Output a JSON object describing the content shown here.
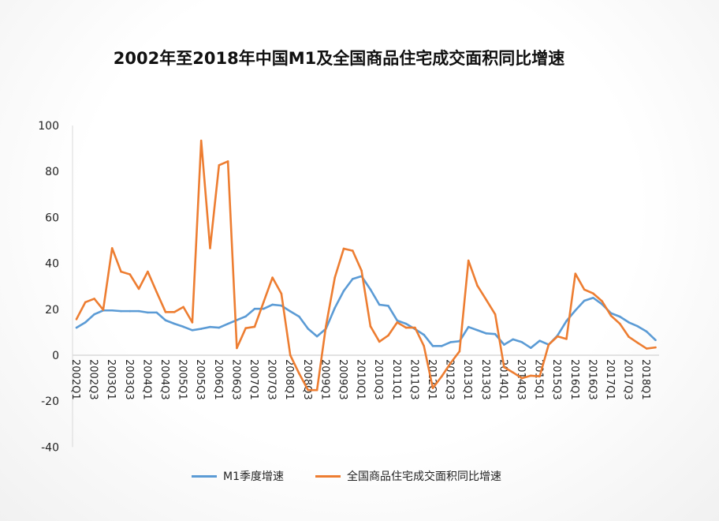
{
  "chart_data": {
    "type": "line",
    "title": "2002年至2018年中国M1及全国商品住宅成交面积同比增速",
    "xlabel": "",
    "ylabel": "",
    "ylim": [
      -40,
      100
    ],
    "yticks": [
      -40,
      -20,
      0,
      20,
      40,
      60,
      80,
      100
    ],
    "grid": false,
    "legend": "bottom",
    "x": [
      "2002Q1",
      "2002Q2",
      "2002Q3",
      "2002Q4",
      "2003Q1",
      "2003Q2",
      "2003Q3",
      "2003Q4",
      "2004Q1",
      "2004Q2",
      "2004Q3",
      "2004Q4",
      "2005Q1",
      "2005Q2",
      "2005Q3",
      "2005Q4",
      "2006Q1",
      "2006Q2",
      "2006Q3",
      "2006Q4",
      "2007Q1",
      "2007Q2",
      "2007Q3",
      "2007Q4",
      "2008Q1",
      "2008Q2",
      "2008Q3",
      "2008Q4",
      "2009Q1",
      "2009Q2",
      "2009Q3",
      "2009Q4",
      "2010Q1",
      "2010Q2",
      "2010Q3",
      "2010Q4",
      "2011Q1",
      "2011Q2",
      "2011Q3",
      "2011Q4",
      "2012Q1",
      "2012Q2",
      "2012Q3",
      "2012Q4",
      "2013Q1",
      "2013Q2",
      "2013Q3",
      "2013Q4",
      "2014Q1",
      "2014Q2",
      "2014Q3",
      "2014Q4",
      "2015Q1",
      "2015Q2",
      "2015Q3",
      "2015Q4",
      "2016Q1",
      "2016Q2",
      "2016Q3",
      "2016Q4",
      "2017Q1",
      "2017Q2",
      "2017Q3",
      "2017Q4",
      "2018Q1",
      "2018Q2"
    ],
    "series": [
      {
        "name": "M1季度增速",
        "color": "#5b9bd5",
        "values": [
          12,
          14.3,
          17.8,
          19.5,
          19.5,
          19.2,
          19.2,
          19.2,
          18.6,
          18.6,
          15.2,
          13.7,
          12.4,
          10.9,
          11.5,
          12.3,
          12,
          13.7,
          15.3,
          16.9,
          20.2,
          20.2,
          22,
          21.6,
          19.1,
          16.8,
          11.5,
          8.2,
          11.5,
          20.6,
          28,
          33.2,
          34.4,
          28.6,
          22,
          21.5,
          15.1,
          13.7,
          11.4,
          8.9,
          4,
          4,
          5.7,
          6.1,
          12.3,
          10.9,
          9.5,
          9.2,
          4.6,
          6.9,
          5.7,
          3.2,
          6.3,
          4.6,
          8.6,
          14.9,
          19.5,
          23.7,
          25,
          22.2,
          18.3,
          16.8,
          14.3,
          12.6,
          10.3,
          6.6
        ]
      },
      {
        "name": "全国商品住宅成交面积同比增速",
        "color": "#ed7d31",
        "values": [
          15.7,
          23.1,
          24.6,
          19.8,
          46.6,
          36.4,
          35.2,
          28.9,
          36.4,
          27.5,
          18.8,
          18.8,
          21,
          14.3,
          93.4,
          46.6,
          82.7,
          84.4,
          3.1,
          11.8,
          12.4,
          23.1,
          33.8,
          26.8,
          0,
          -8,
          -15.2,
          -15.2,
          12.6,
          33.8,
          46.4,
          45.5,
          36.8,
          12.6,
          5.9,
          8.6,
          14.3,
          12,
          12,
          4,
          -14.3,
          -9.2,
          -3.4,
          1.7,
          41.2,
          30.3,
          24.1,
          17.8,
          -5.2,
          -7.5,
          -10,
          -8.9,
          -9.2,
          4.6,
          8.2,
          7.1,
          35.5,
          28.6,
          26.9,
          23.5,
          17.2,
          13.7,
          8,
          5.4,
          2.9,
          3.4
        ]
      }
    ]
  }
}
